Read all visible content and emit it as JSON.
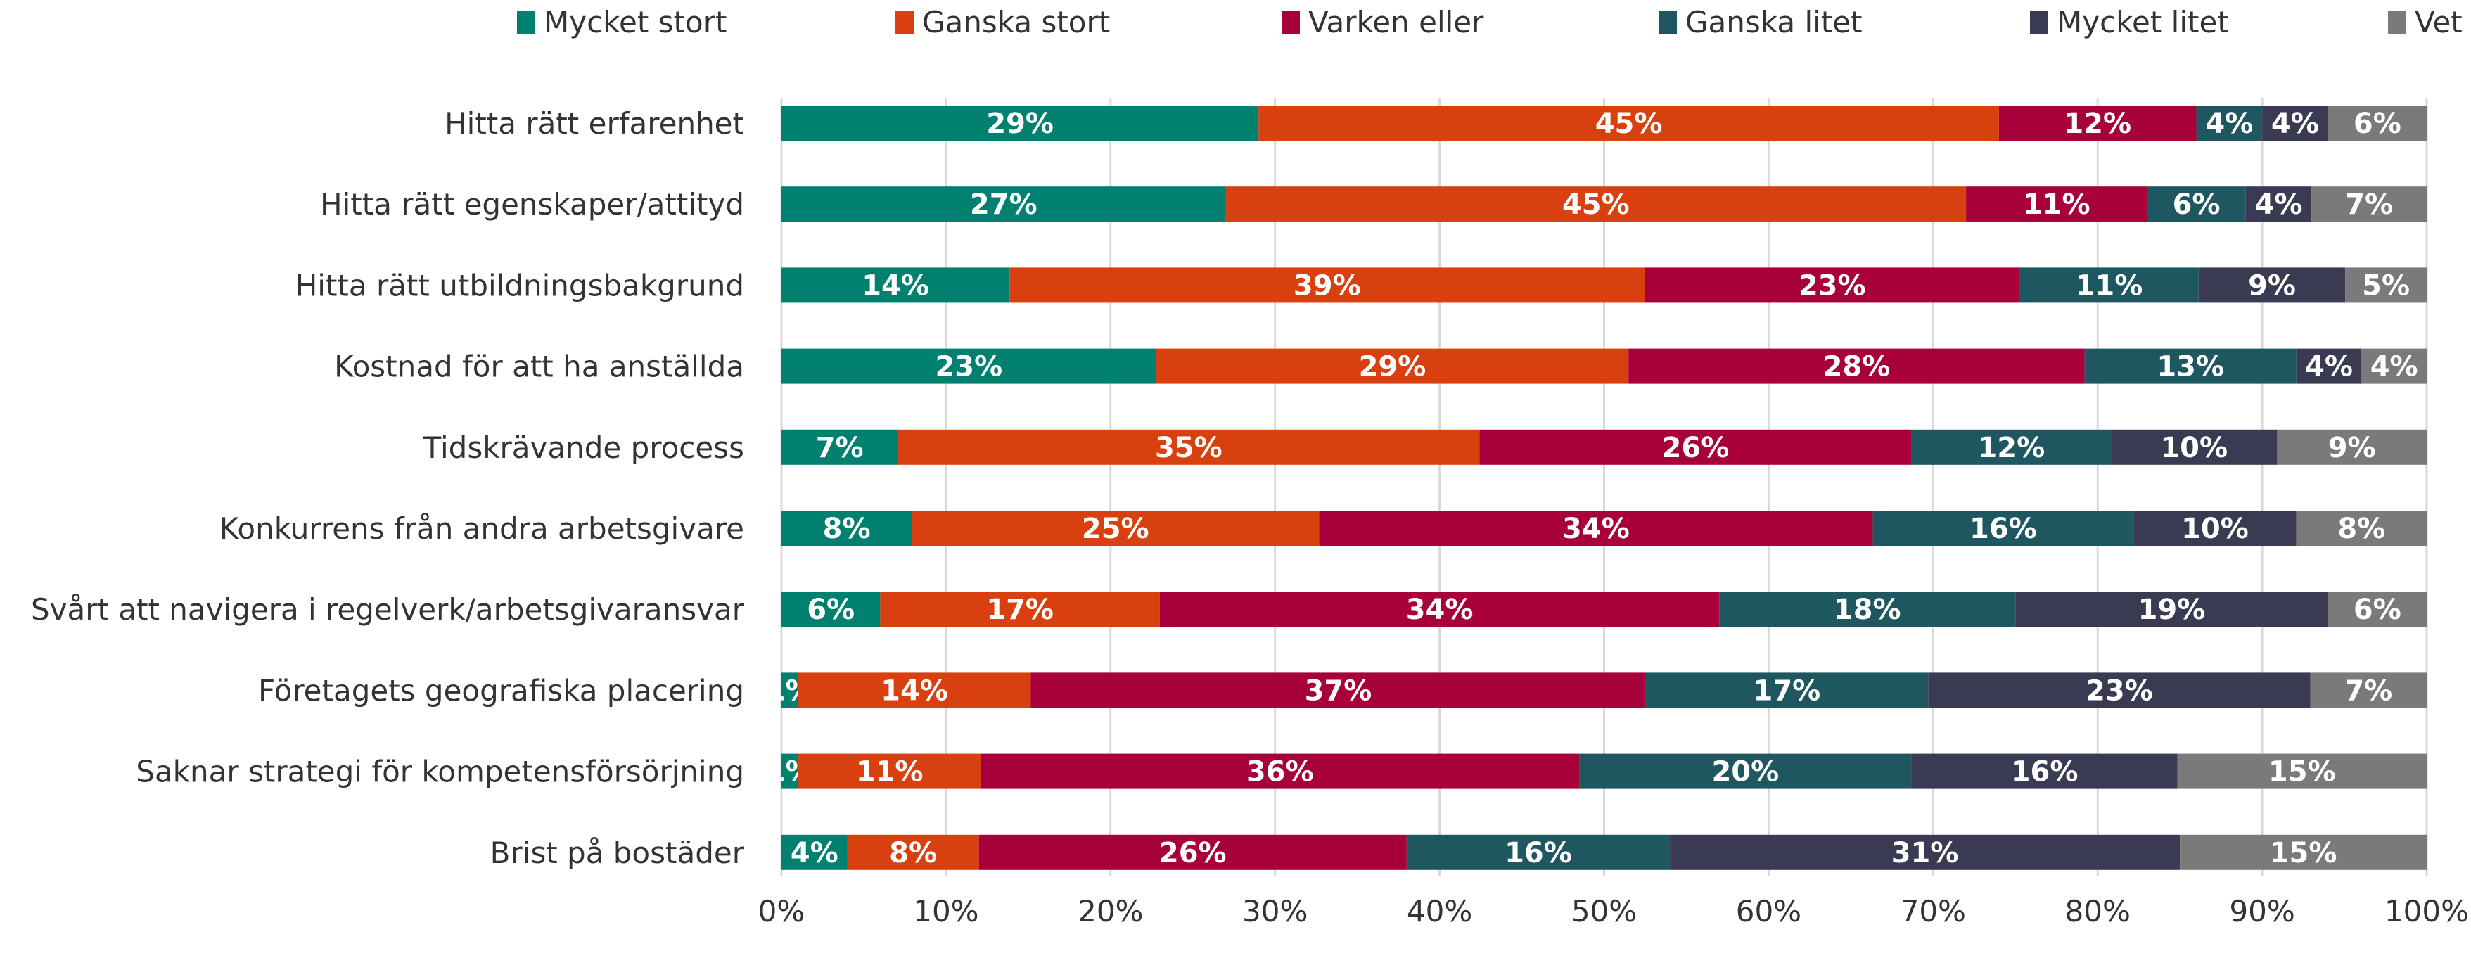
{
  "chart_data": {
    "type": "bar",
    "orientation": "horizontal",
    "stacked": "percent",
    "title": "",
    "xlabel": "",
    "ylabel": "",
    "xlim": [
      0,
      100
    ],
    "grid": true,
    "legend_position": "top",
    "x_ticks": [
      "0%",
      "10%",
      "20%",
      "30%",
      "40%",
      "50%",
      "60%",
      "70%",
      "80%",
      "90%",
      "100%"
    ],
    "categories": [
      "Hitta rätt erfarenhet",
      "Hitta rätt egenskaper/attityd",
      "Hitta rätt utbildningsbakgrund",
      "Kostnad för att ha anställda",
      "Tidskrävande process",
      "Konkurrens från andra arbetsgivare",
      "Svårt att navigera i regelverk/arbetsgivaransvar",
      "Företagets geografiska placering",
      "Saknar strategi för kompetensförsörjning",
      "Brist på bostäder"
    ],
    "series": [
      {
        "name": "Mycket stort",
        "color": "#00806E",
        "values": [
          29,
          27,
          14,
          23,
          7,
          8,
          6,
          1,
          1,
          4
        ]
      },
      {
        "name": "Ganska stort",
        "color": "#D9400F",
        "values": [
          45,
          45,
          39,
          29,
          35,
          25,
          17,
          14,
          11,
          8
        ]
      },
      {
        "name": "Varken eller",
        "color": "#A8003A",
        "values": [
          12,
          11,
          23,
          28,
          26,
          34,
          34,
          37,
          36,
          26
        ]
      },
      {
        "name": "Ganska litet",
        "color": "#1F5761",
        "values": [
          4,
          6,
          11,
          13,
          12,
          16,
          18,
          17,
          20,
          16
        ]
      },
      {
        "name": "Mycket litet",
        "color": "#3A3A52",
        "values": [
          4,
          4,
          9,
          4,
          10,
          10,
          19,
          23,
          16,
          31
        ]
      },
      {
        "name": "Vet ej",
        "color": "#7A7A7A",
        "values": [
          6,
          7,
          5,
          4,
          9,
          8,
          6,
          7,
          15,
          15
        ]
      }
    ]
  }
}
